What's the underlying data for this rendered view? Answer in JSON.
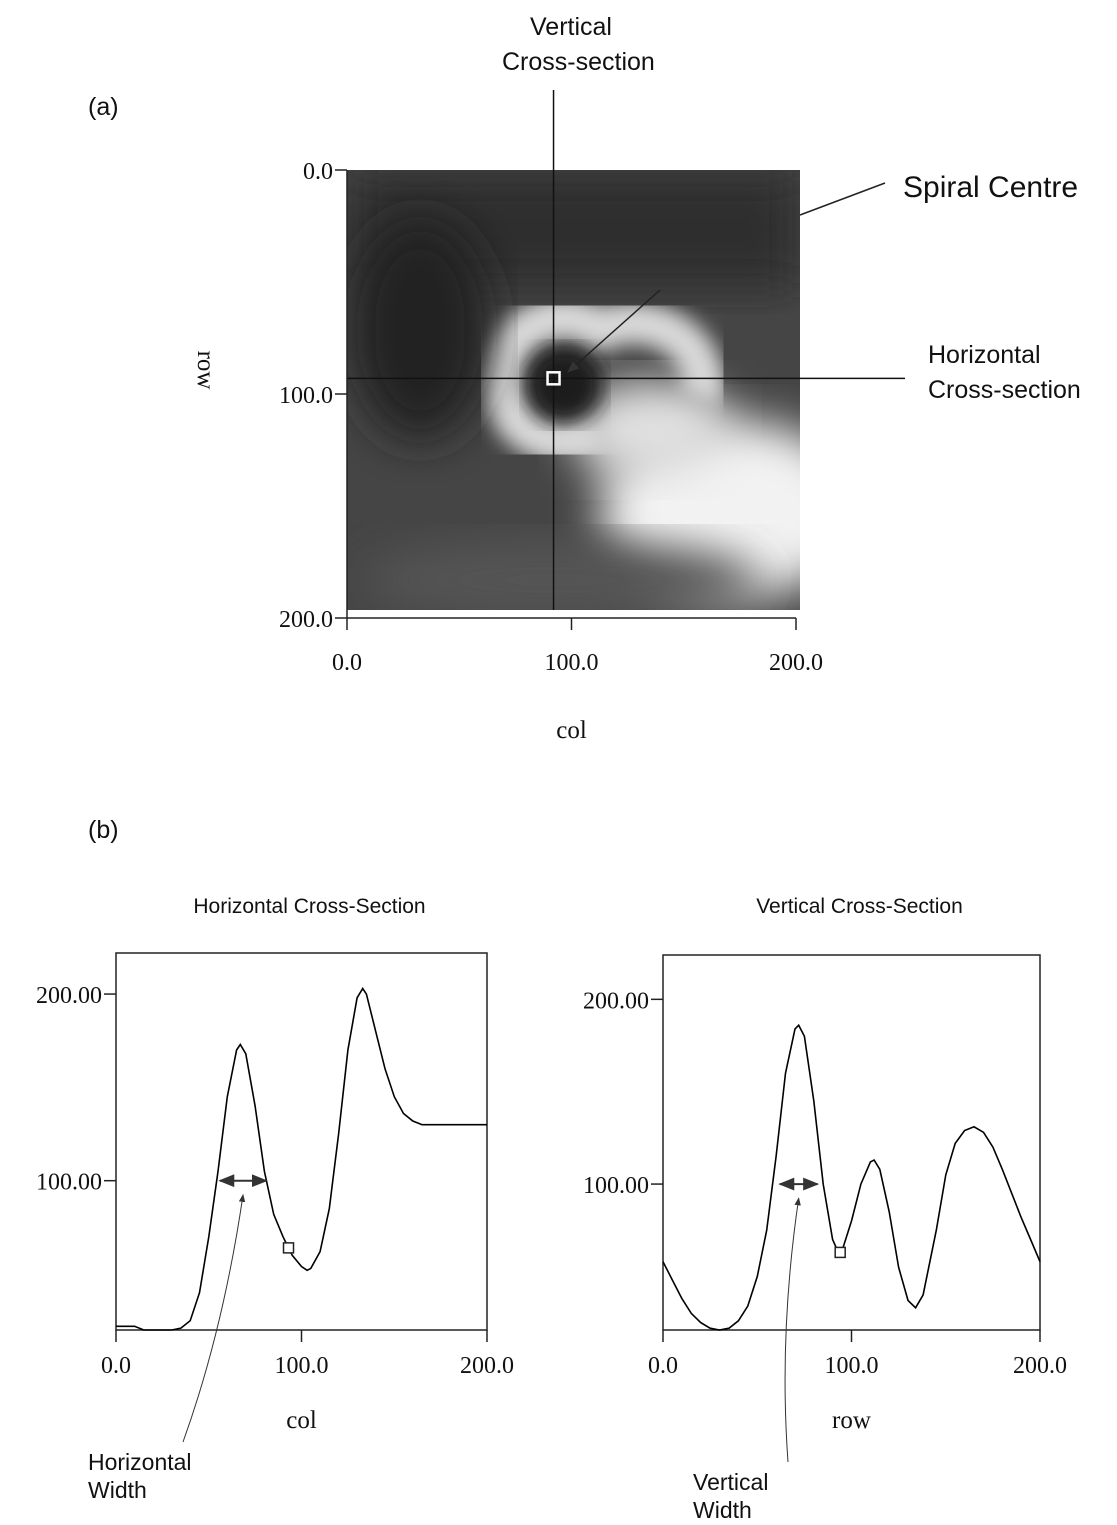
{
  "panels": [
    "(a)",
    "(b)"
  ],
  "chart_data": [
    {
      "type": "image",
      "x_label": "col",
      "y_label": "row",
      "xlim": [
        0,
        200
      ],
      "ylim": [
        0,
        200
      ],
      "y_inverted": true,
      "xticks": [
        {
          "value": 0,
          "label": "0.0"
        },
        {
          "value": 100,
          "label": "100.0"
        },
        {
          "value": 200,
          "label": "200.0"
        }
      ],
      "yticks": [
        {
          "value": 0,
          "label": "0.0"
        },
        {
          "value": 100,
          "label": "100.0"
        },
        {
          "value": 200,
          "label": "200.0"
        }
      ],
      "centre": {
        "x": 92,
        "y": 93
      },
      "annotations": [
        [
          "Vertical",
          "Cross-section"
        ],
        [
          "Spiral Centre"
        ],
        [
          "Horizontal",
          "Cross-section"
        ]
      ]
    },
    {
      "type": "line",
      "title": "Horizontal Cross-Section",
      "x_label": "col",
      "color": "#000000",
      "xlim": [
        0,
        200
      ],
      "ylim": [
        20,
        222
      ],
      "xticks": [
        {
          "value": 0,
          "label": "0.0"
        },
        {
          "value": 100,
          "label": "100.0"
        },
        {
          "value": 200,
          "label": "200.0"
        }
      ],
      "yticks": [
        {
          "value": 100,
          "label": "100.00"
        },
        {
          "value": 200,
          "label": "200.00"
        }
      ],
      "x": [
        0,
        5,
        10,
        15,
        20,
        25,
        30,
        35,
        40,
        45,
        50,
        55,
        60,
        65,
        67,
        70,
        75,
        80,
        85,
        90,
        93,
        95,
        100,
        103,
        105,
        110,
        115,
        120,
        125,
        130,
        133,
        135,
        140,
        145,
        150,
        155,
        160,
        165,
        170,
        180,
        190,
        200
      ],
      "values": [
        22,
        22,
        22,
        20,
        20,
        20,
        20,
        21,
        25,
        40,
        70,
        105,
        145,
        170,
        173,
        168,
        140,
        105,
        82,
        70,
        64,
        60,
        54,
        52,
        53,
        62,
        85,
        125,
        170,
        198,
        203,
        200,
        180,
        160,
        145,
        136,
        132,
        130,
        130,
        130,
        130,
        130
      ],
      "marker": {
        "x": 93,
        "y": 64
      },
      "width": {
        "from": 56,
        "to": 81,
        "at": 100,
        "label": [
          "Horizontal",
          "Width"
        ]
      }
    },
    {
      "type": "line",
      "title": "Vertical Cross-Section",
      "x_label": "row",
      "color": "#000000",
      "xlim": [
        0,
        200
      ],
      "ylim": [
        21,
        224
      ],
      "xticks": [
        {
          "value": 0,
          "label": "0.0"
        },
        {
          "value": 100,
          "label": "100.0"
        },
        {
          "value": 200,
          "label": "200.0"
        }
      ],
      "yticks": [
        {
          "value": 100,
          "label": "100.00"
        },
        {
          "value": 200,
          "label": "200.00"
        }
      ],
      "x": [
        0,
        5,
        10,
        15,
        20,
        25,
        30,
        35,
        40,
        45,
        50,
        55,
        60,
        65,
        70,
        72,
        75,
        80,
        85,
        90,
        93,
        95,
        100,
        105,
        110,
        112,
        115,
        120,
        125,
        130,
        134,
        138,
        145,
        150,
        155,
        160,
        165,
        170,
        175,
        180,
        185,
        190,
        195,
        200
      ],
      "values": [
        58,
        48,
        38,
        30,
        25,
        22,
        21,
        22,
        26,
        34,
        50,
        75,
        115,
        160,
        184,
        186,
        180,
        145,
        100,
        70,
        63,
        64,
        80,
        100,
        112,
        113,
        108,
        85,
        55,
        37,
        33,
        40,
        75,
        105,
        122,
        129,
        131,
        128,
        120,
        108,
        95,
        82,
        70,
        58
      ],
      "marker": {
        "x": 94,
        "y": 63
      },
      "width": {
        "from": 62,
        "to": 82,
        "at": 100,
        "label": [
          "Vertical",
          "Width"
        ]
      }
    }
  ]
}
